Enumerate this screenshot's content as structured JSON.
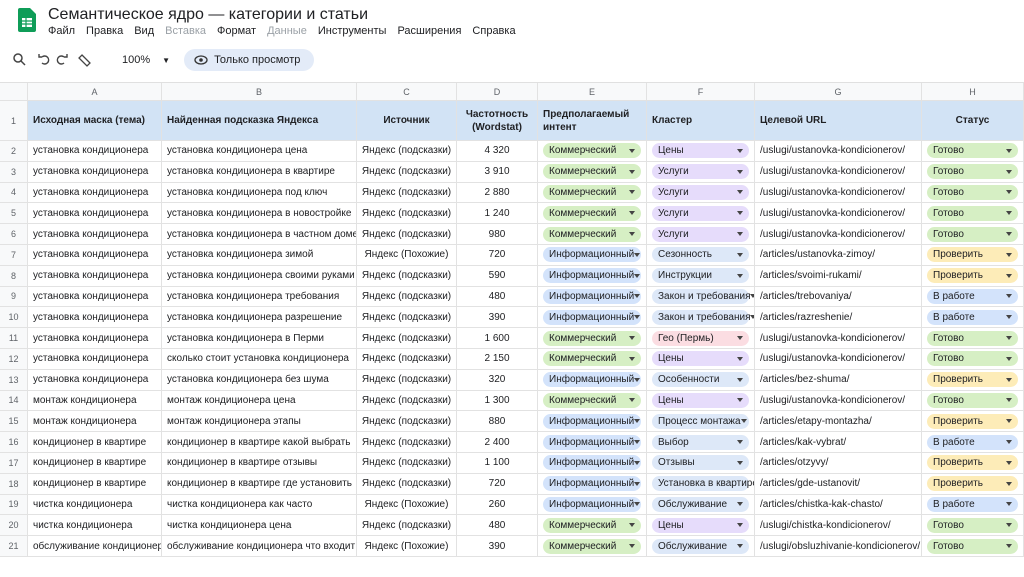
{
  "header": {
    "title": "Семантическое ядро — категории и статьи",
    "menu": [
      {
        "label": "Файл"
      },
      {
        "label": "Правка"
      },
      {
        "label": "Вид"
      },
      {
        "label": "Вставка",
        "disabled": true
      },
      {
        "label": "Формат"
      },
      {
        "label": "Данные",
        "disabled": true
      },
      {
        "label": "Инструменты"
      },
      {
        "label": "Расширения"
      },
      {
        "label": "Справка"
      }
    ]
  },
  "toolbar": {
    "zoom": "100%",
    "mode": "Только просмотр"
  },
  "table": {
    "columns": [
      "A",
      "B",
      "C",
      "D",
      "E",
      "F",
      "G",
      "H"
    ],
    "row_numbers": [
      1,
      2,
      3,
      4,
      5,
      6,
      7,
      8,
      9,
      10,
      11,
      12,
      13,
      14,
      15,
      16,
      17,
      18,
      19,
      20,
      21
    ],
    "headers": [
      "Исходная маска (тема)",
      "Найденная подсказка Яндекса",
      "Источник",
      "Частотность (Wordstat)",
      "Предполагаемый интент",
      "Кластер",
      "Целевой URL",
      "Статус"
    ],
    "rows": [
      [
        "установка кондиционера",
        "установка кондиционера цена",
        "Яндекс (подсказки)",
        "4 320",
        "Коммерческий",
        "Цены",
        "/uslugi/ustanovka-kondicionerov/",
        "Готово"
      ],
      [
        "установка кондиционера",
        "установка кондиционера в квартире",
        "Яндекс (подсказки)",
        "3 910",
        "Коммерческий",
        "Услуги",
        "/uslugi/ustanovka-kondicionerov/",
        "Готово"
      ],
      [
        "установка кондиционера",
        "установка кондиционера под ключ",
        "Яндекс (подсказки)",
        "2 880",
        "Коммерческий",
        "Услуги",
        "/uslugi/ustanovka-kondicionerov/",
        "Готово"
      ],
      [
        "установка кондиционера",
        "установка кондиционера в новостройке",
        "Яндекс (подсказки)",
        "1 240",
        "Коммерческий",
        "Услуги",
        "/uslugi/ustanovka-kondicionerov/",
        "Готово"
      ],
      [
        "установка кондиционера",
        "установка кондиционера в частном доме",
        "Яндекс (подсказки)",
        "980",
        "Коммерческий",
        "Услуги",
        "/uslugi/ustanovka-kondicionerov/",
        "Готово"
      ],
      [
        "установка кондиционера",
        "установка кондиционера зимой",
        "Яндекс (Похожие)",
        "720",
        "Информационный",
        "Сезонность",
        "/articles/ustanovka-zimoy/",
        "Проверить"
      ],
      [
        "установка кондиционера",
        "установка кондиционера своими руками",
        "Яндекс (подсказки)",
        "590",
        "Информационный",
        "Инструкции",
        "/articles/svoimi-rukami/",
        "Проверить"
      ],
      [
        "установка кондиционера",
        "установка кондиционера требования",
        "Яндекс (подсказки)",
        "480",
        "Информационный",
        "Закон и требования",
        "/articles/trebovaniya/",
        "В работе"
      ],
      [
        "установка кондиционера",
        "установка кондиционера разрешение",
        "Яндекс (подсказки)",
        "390",
        "Информационный",
        "Закон и требования",
        "/articles/razreshenie/",
        "В работе"
      ],
      [
        "установка кондиционера",
        "установка кондиционера в Перми",
        "Яндекс (подсказки)",
        "1 600",
        "Коммерческий",
        "Гео (Пермь)",
        "/uslugi/ustanovka-kondicionerov/",
        "Готово"
      ],
      [
        "установка кондиционера",
        "сколько стоит установка кондиционера",
        "Яндекс (подсказки)",
        "2 150",
        "Коммерческий",
        "Цены",
        "/uslugi/ustanovka-kondicionerov/",
        "Готово"
      ],
      [
        "установка кондиционера",
        "установка кондиционера без шума",
        "Яндекс (подсказки)",
        "320",
        "Информационный",
        "Особенности",
        "/articles/bez-shuma/",
        "Проверить"
      ],
      [
        "монтаж кондиционера",
        "монтаж кондиционера цена",
        "Яндекс (подсказки)",
        "1 300",
        "Коммерческий",
        "Цены",
        "/uslugi/ustanovka-kondicionerov/",
        "Готово"
      ],
      [
        "монтаж кондиционера",
        "монтаж кондиционера этапы",
        "Яндекс (подсказки)",
        "880",
        "Информационный",
        "Процесс монтажа",
        "/articles/etapy-montazha/",
        "Проверить"
      ],
      [
        "кондиционер в квартире",
        "кондиционер в квартире какой выбрать",
        "Яндекс (подсказки)",
        "2 400",
        "Информационный",
        "Выбор",
        "/articles/kak-vybrat/",
        "В работе"
      ],
      [
        "кондиционер в квартире",
        "кондиционер в квартире отзывы",
        "Яндекс (подсказки)",
        "1 100",
        "Информационный",
        "Отзывы",
        "/articles/otzyvy/",
        "Проверить"
      ],
      [
        "кондиционер в квартире",
        "кондиционер в квартире где установить",
        "Яндекс (подсказки)",
        "720",
        "Информационный",
        "Установка в квартире",
        "/articles/gde-ustanovit/",
        "Проверить"
      ],
      [
        "чистка кондиционера",
        "чистка кондиционера как часто",
        "Яндекс (Похожие)",
        "260",
        "Информационный",
        "Обслуживание",
        "/articles/chistka-kak-chasto/",
        "В работе"
      ],
      [
        "чистка кондиционера",
        "чистка кондиционера цена",
        "Яндекс (подсказки)",
        "480",
        "Коммерческий",
        "Цены",
        "/uslugi/chistka-kondicionerov/",
        "Готово"
      ],
      [
        "обслуживание кондиционера",
        "обслуживание кондиционера что входит",
        "Яндекс (Похожие)",
        "390",
        "Коммерческий",
        "Обслуживание",
        "/uslugi/obsluzhivanie-kondicionerov/",
        "Готово"
      ]
    ],
    "chip_colors": {
      "Коммерческий": "#d6efc4",
      "Информационный": "#d3e3fb",
      "Цены": "#e6dcfb",
      "Услуги": "#e6dcfb",
      "Гео (Пермь)": "#fbdde2",
      "Готово": "#d6efc4",
      "Проверить": "#fdecb8",
      "В работе": "#d3e3fb",
      "default": "#dde8f8"
    }
  }
}
